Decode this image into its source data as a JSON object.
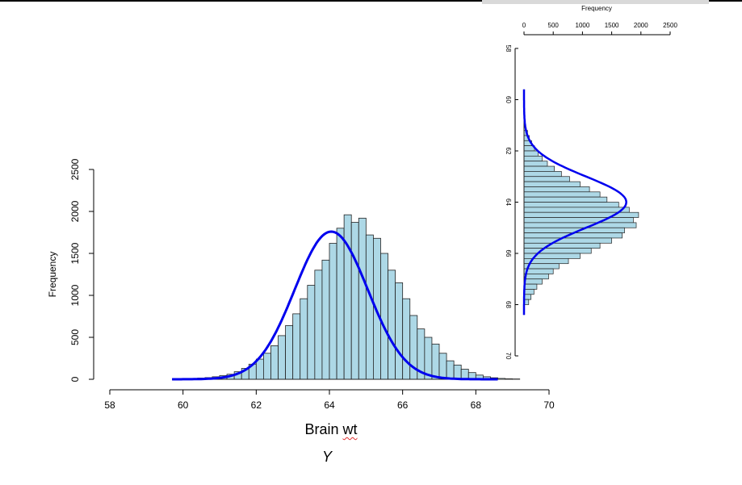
{
  "captions": {
    "label_word": "Brain",
    "label_unit": "wt",
    "variable": "Y"
  },
  "chart_data": [
    {
      "type": "bar",
      "orientation": "vertical",
      "ylabel": "Frequency",
      "xlabel": "",
      "xlim": [
        58,
        70
      ],
      "ylim": [
        0,
        2500
      ],
      "x_ticks": [
        58,
        60,
        62,
        64,
        66,
        68,
        70
      ],
      "y_ticks": [
        0,
        500,
        1000,
        1500,
        2000,
        2500
      ],
      "bin_width": 0.2,
      "bin_start": 59.8,
      "values": [
        5,
        8,
        10,
        15,
        20,
        30,
        45,
        60,
        90,
        130,
        180,
        240,
        310,
        400,
        520,
        640,
        780,
        960,
        1120,
        1300,
        1420,
        1620,
        1800,
        1960,
        1870,
        1920,
        1720,
        1680,
        1500,
        1300,
        1150,
        960,
        760,
        600,
        500,
        420,
        310,
        220,
        170,
        120,
        80,
        50,
        30,
        18,
        10,
        6,
        4
      ],
      "fill_color": "#add8e6",
      "curve_color": "#0000ee",
      "curve": {
        "mean": 64.05,
        "sd": 1.0,
        "peak": 1760
      }
    },
    {
      "type": "bar",
      "orientation": "horizontal",
      "title": "Frequency",
      "xlim": [
        0,
        2500
      ],
      "ylim": [
        58,
        70
      ],
      "x_ticks": [
        0,
        500,
        1000,
        1500,
        2000,
        2500
      ],
      "y_ticks": [
        58,
        60,
        62,
        64,
        66,
        68,
        70
      ],
      "bin_width": 0.2,
      "bin_start": 61.2,
      "values": [
        60,
        90,
        130,
        180,
        240,
        310,
        400,
        520,
        640,
        780,
        960,
        1120,
        1300,
        1420,
        1620,
        1800,
        1960,
        1870,
        1920,
        1720,
        1680,
        1500,
        1300,
        1150,
        960,
        760,
        600,
        500,
        420,
        310,
        220,
        170,
        120,
        80
      ],
      "fill_color": "#add8e6",
      "curve_color": "#0000ee",
      "curve": {
        "mean": 64.0,
        "sd": 1.0,
        "peak": 1750
      }
    }
  ]
}
